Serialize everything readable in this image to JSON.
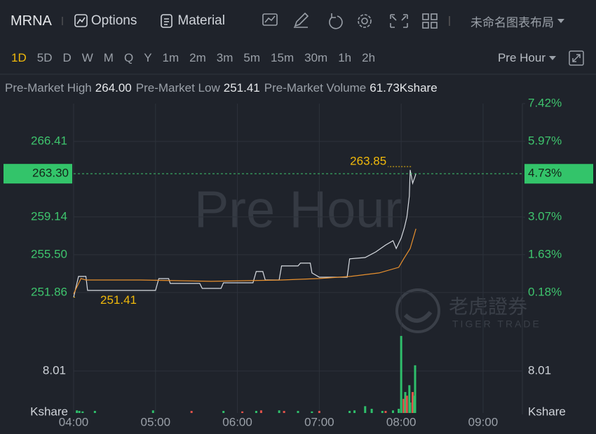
{
  "toolbar": {
    "symbol": "MRNA",
    "buttons": [
      "Options",
      "Material"
    ],
    "layout_name": "未命名图表布局"
  },
  "periods": [
    "1D",
    "5D",
    "D",
    "W",
    "M",
    "Q",
    "Y",
    "1m",
    "2m",
    "3m",
    "5m",
    "15m",
    "30m",
    "1h",
    "2h"
  ],
  "session": "Pre Hour",
  "stats": [
    {
      "label": "Pre-Market High",
      "value": "264.00"
    },
    {
      "label": "Pre-Market Low",
      "value": "251.41"
    },
    {
      "label": "Pre-Market Volume",
      "value": "61.73Kshare"
    }
  ],
  "chart_data": {
    "type": "line",
    "watermark": "Pre Hour",
    "brand": "老虎證券",
    "brand_en": "TIGER TRADE",
    "xlim": [
      4,
      9.48
    ],
    "xticks": [
      {
        "value": 4,
        "label": "04:00"
      },
      {
        "value": 5,
        "label": "05:00"
      },
      {
        "value": 6,
        "label": "06:00"
      },
      {
        "value": 7,
        "label": "07:00"
      },
      {
        "value": 8,
        "label": "08:00"
      },
      {
        "value": 9,
        "label": "09:00"
      }
    ],
    "ylim": [
      248.35,
      270.05
    ],
    "yticks": [
      251.86,
      {
        "value": 255.5,
        "label": "255.50"
      },
      259.14,
      266.41
    ],
    "y2lim": [
      -1.22,
      7.42
    ],
    "y2ticks": [
      {
        "value": 0.18,
        "label": "0.18%"
      },
      {
        "value": 1.63,
        "label": "1.63%"
      },
      {
        "value": 3.07,
        "label": "3.07%"
      },
      {
        "value": 5.97,
        "label": "5.97%"
      },
      {
        "value": 7.42,
        "label": "7.42%"
      }
    ],
    "grid": true,
    "current": {
      "value": 263.3,
      "label": "263.30"
    },
    "current_pct": {
      "value": 4.73,
      "label": "4.73%"
    },
    "annotations": [
      {
        "x": 8.12,
        "y": 263.85,
        "label": "263.85"
      },
      {
        "x": 4.0,
        "y": 251.41,
        "label": "251.41"
      }
    ],
    "series": [
      {
        "color": "#d8dce2",
        "x": [
          4.0,
          4.06,
          4.15,
          4.17,
          5.0,
          5.04,
          5.16,
          5.18,
          5.54,
          5.57,
          5.8,
          5.83,
          6.19,
          6.23,
          6.31,
          6.34,
          6.51,
          6.54,
          6.74,
          6.77,
          6.89,
          6.91,
          7.0,
          7.34,
          7.37,
          7.56,
          7.69,
          7.81,
          7.9,
          7.94,
          8.0,
          8.04,
          8.07,
          8.1,
          8.11,
          8.14,
          8.17,
          8.18
        ],
        "values": [
          251.41,
          253.41,
          253.41,
          252.06,
          252.06,
          253.2,
          253.2,
          252.74,
          252.74,
          252.26,
          252.26,
          252.8,
          252.8,
          253.88,
          253.88,
          253.07,
          253.07,
          254.42,
          254.42,
          254.69,
          254.69,
          253.75,
          253.34,
          253.34,
          255.1,
          255.23,
          255.77,
          256.44,
          256.85,
          256.1,
          257.12,
          258.13,
          259.14,
          261.16,
          263.66,
          262.38,
          263.05,
          263.32
        ]
      },
      {
        "color": "#e8902e",
        "x": [
          4.0,
          4.09,
          4.15,
          4.82,
          5.68,
          6.54,
          7.0,
          7.38,
          7.73,
          7.97,
          8.03,
          8.11,
          8.18
        ],
        "values": [
          251.73,
          253.21,
          253.07,
          253.07,
          252.94,
          253.07,
          253.21,
          253.41,
          253.75,
          254.29,
          255.1,
          256.1,
          258.0
        ]
      }
    ],
    "volume": {
      "type": "bar",
      "unit": "Kshare",
      "ylim": [
        0,
        16.02
      ],
      "yticks": [
        8.01
      ],
      "x": [
        4.04,
        4.07,
        4.11,
        4.26,
        4.97,
        5.44,
        5.83,
        6.06,
        6.23,
        6.29,
        6.51,
        6.57,
        6.74,
        6.91,
        7.0,
        7.37,
        7.43,
        7.56,
        7.64,
        7.77,
        7.81,
        7.9,
        7.97,
        8.0,
        8.03,
        8.05,
        8.07,
        8.1,
        8.11,
        8.14,
        8.16,
        8.17
      ],
      "values": [
        0.5,
        0.4,
        0.3,
        0.4,
        0.5,
        0.4,
        0.4,
        0.3,
        0.4,
        0.5,
        0.5,
        0.4,
        0.4,
        0.3,
        0.4,
        0.4,
        0.5,
        1.3,
        0.8,
        0.4,
        0.4,
        0.5,
        0.8,
        14.7,
        2.7,
        4.0,
        3.3,
        5.3,
        2.0,
        4.0,
        3.3,
        9.1
      ],
      "colors": [
        "#2fbf6b",
        "#2fbf6b",
        "#2fbf6b",
        "#2fbf6b",
        "#2fbf6b",
        "#e0524a",
        "#2fbf6b",
        "#e0524a",
        "#2fbf6b",
        "#e0524a",
        "#2fbf6b",
        "#e0524a",
        "#2fbf6b",
        "#2fbf6b",
        "#e0524a",
        "#2fbf6b",
        "#2fbf6b",
        "#2fbf6b",
        "#2fbf6b",
        "#2fbf6b",
        "#e0524a",
        "#2fbf6b",
        "#2fbf6b",
        "#2fbf6b",
        "#e0524a",
        "#2fbf6b",
        "#e0524a",
        "#2fbf6b",
        "#2fbf6b",
        "#e0524a",
        "#2fbf6b",
        "#2fbf6b"
      ]
    }
  }
}
